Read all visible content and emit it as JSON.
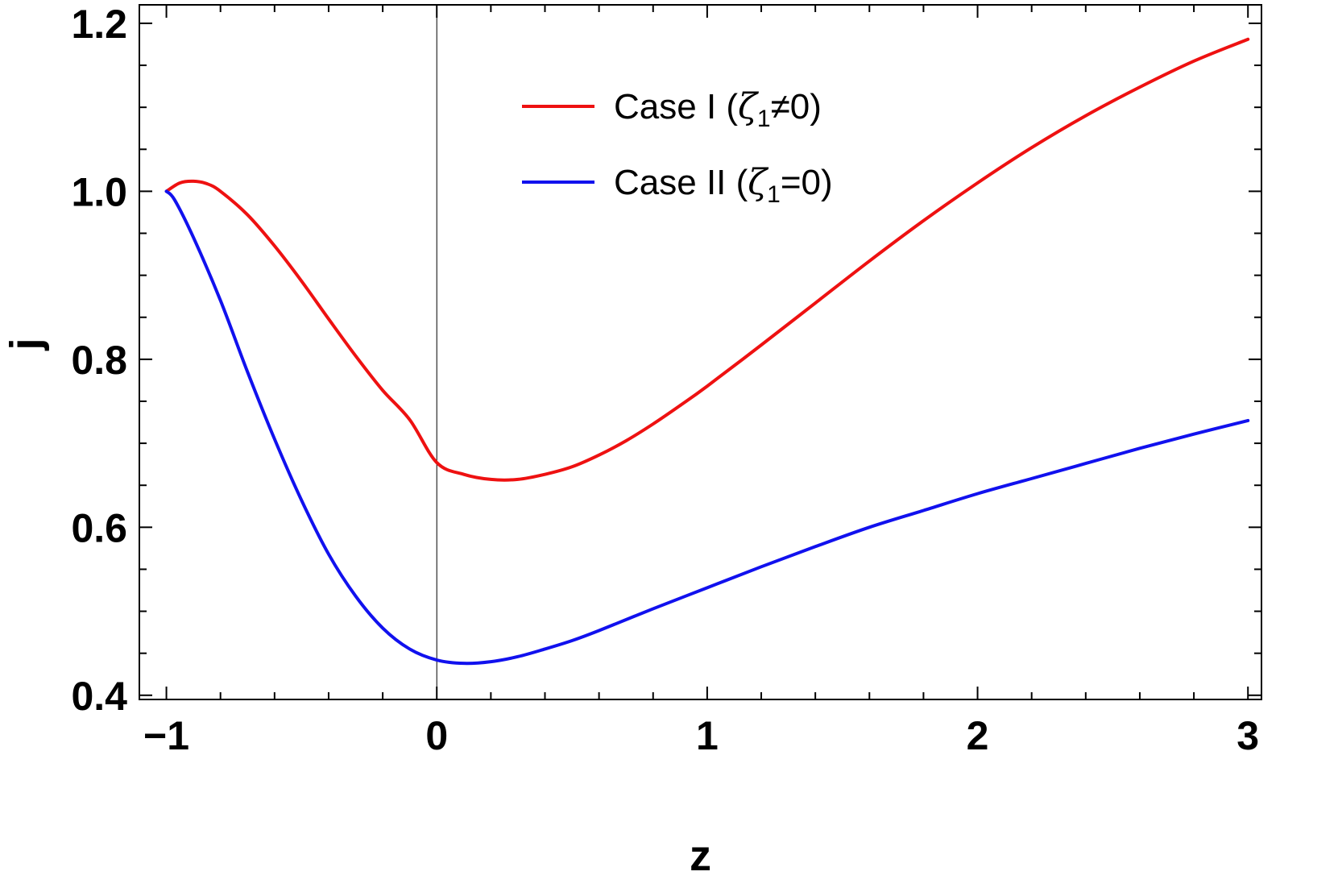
{
  "chart_data": {
    "type": "line",
    "title": "",
    "xlabel": "z",
    "ylabel": "j",
    "xlim": [
      -1.1,
      3.05
    ],
    "ylim": [
      0.395,
      1.222
    ],
    "x_ticks_major": [
      -1,
      0,
      1,
      2,
      3
    ],
    "x_tick_labels": [
      "−1",
      "0",
      "1",
      "2",
      "3"
    ],
    "x_ticks_minor_step": 0.2,
    "y_ticks_major": [
      0.4,
      0.6,
      0.8,
      1.0,
      1.2
    ],
    "y_tick_labels": [
      "0.4",
      "0.6",
      "0.8",
      "1.0",
      "1.2"
    ],
    "y_ticks_minor_step": 0.05,
    "grid": false,
    "vertical_reference_line_x": 0,
    "legend_position": "top-center",
    "series": [
      {
        "name": "Case I (ζ₁≠0)",
        "legend_label": {
          "prefix": "Case I (",
          "symbol": "ζ",
          "subscript": "1",
          "suffix": "≠0)"
        },
        "color": "#ee1111",
        "points": [
          [
            -1.0,
            1.0
          ],
          [
            -0.95,
            1.01
          ],
          [
            -0.9,
            1.012
          ],
          [
            -0.85,
            1.009
          ],
          [
            -0.8,
            1.0
          ],
          [
            -0.7,
            0.972
          ],
          [
            -0.6,
            0.935
          ],
          [
            -0.5,
            0.893
          ],
          [
            -0.4,
            0.848
          ],
          [
            -0.3,
            0.804
          ],
          [
            -0.2,
            0.763
          ],
          [
            -0.1,
            0.728
          ],
          [
            0.0,
            0.677
          ],
          [
            0.1,
            0.663
          ],
          [
            0.2,
            0.657
          ],
          [
            0.3,
            0.657
          ],
          [
            0.4,
            0.663
          ],
          [
            0.5,
            0.672
          ],
          [
            0.6,
            0.686
          ],
          [
            0.7,
            0.703
          ],
          [
            0.8,
            0.723
          ],
          [
            0.9,
            0.745
          ],
          [
            1.0,
            0.768
          ],
          [
            1.2,
            0.817
          ],
          [
            1.4,
            0.867
          ],
          [
            1.6,
            0.917
          ],
          [
            1.8,
            0.965
          ],
          [
            2.0,
            1.01
          ],
          [
            2.2,
            1.052
          ],
          [
            2.4,
            1.09
          ],
          [
            2.6,
            1.124
          ],
          [
            2.8,
            1.155
          ],
          [
            3.0,
            1.181
          ]
        ]
      },
      {
        "name": "Case II (ζ₁=0)",
        "legend_label": {
          "prefix": "Case II (",
          "symbol": "ζ",
          "subscript": "1",
          "suffix": "=0)"
        },
        "color": "#1111ee",
        "points": [
          [
            -1.0,
            1.0
          ],
          [
            -0.97,
            0.99
          ],
          [
            -0.9,
            0.945
          ],
          [
            -0.8,
            0.87
          ],
          [
            -0.7,
            0.785
          ],
          [
            -0.6,
            0.705
          ],
          [
            -0.5,
            0.632
          ],
          [
            -0.4,
            0.568
          ],
          [
            -0.3,
            0.518
          ],
          [
            -0.2,
            0.48
          ],
          [
            -0.1,
            0.455
          ],
          [
            0.0,
            0.442
          ],
          [
            0.1,
            0.438
          ],
          [
            0.2,
            0.44
          ],
          [
            0.3,
            0.446
          ],
          [
            0.4,
            0.455
          ],
          [
            0.5,
            0.465
          ],
          [
            0.6,
            0.477
          ],
          [
            0.8,
            0.503
          ],
          [
            1.0,
            0.528
          ],
          [
            1.2,
            0.553
          ],
          [
            1.4,
            0.577
          ],
          [
            1.6,
            0.6
          ],
          [
            1.8,
            0.62
          ],
          [
            2.0,
            0.64
          ],
          [
            2.2,
            0.658
          ],
          [
            2.4,
            0.676
          ],
          [
            2.6,
            0.694
          ],
          [
            2.8,
            0.711
          ],
          [
            3.0,
            0.727
          ]
        ]
      }
    ]
  }
}
